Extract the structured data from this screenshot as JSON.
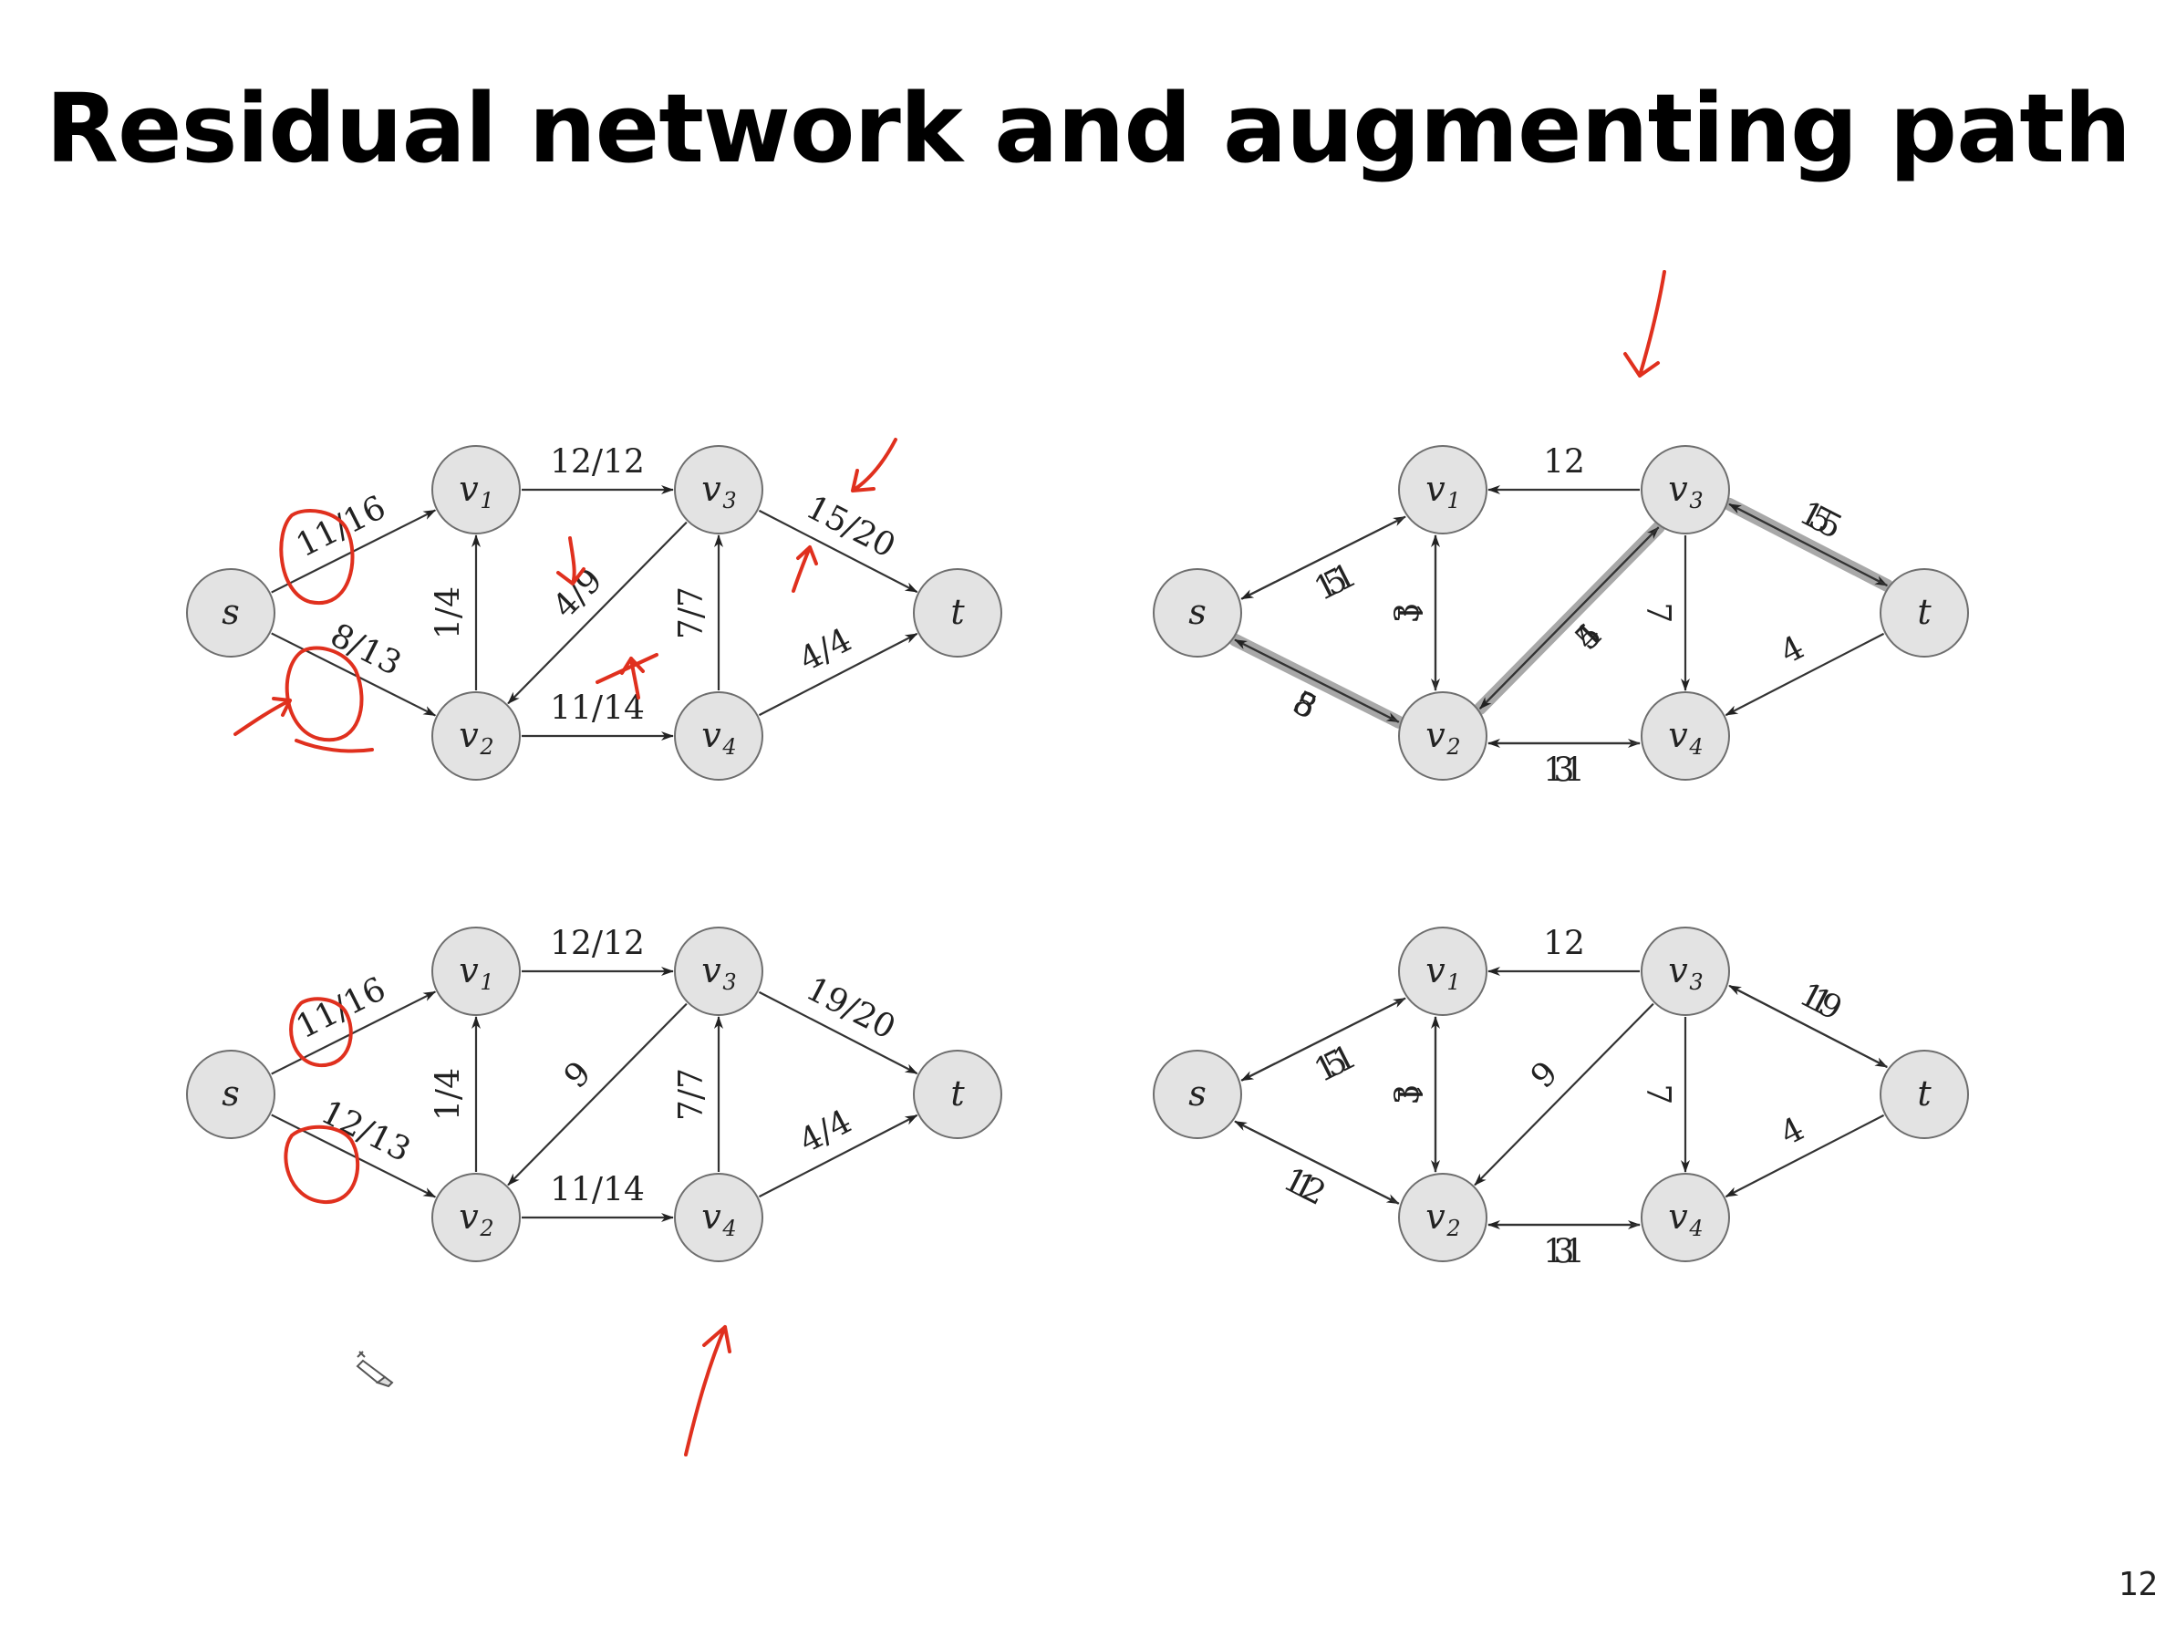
{
  "slide": {
    "title": "Residual network and augmenting path",
    "page_number": "12"
  },
  "icons": {
    "cursor": "pen-cursor-icon"
  },
  "colors": {
    "annotation": "#e0301e",
    "node_fill": "#e3e3e3",
    "path_highlight": "#9a9a9a"
  },
  "panels": [
    {
      "id": "flow-top-left",
      "nodes": [
        {
          "id": "s",
          "label": "s",
          "sub": ""
        },
        {
          "id": "v1",
          "label": "v",
          "sub": "1"
        },
        {
          "id": "v2",
          "label": "v",
          "sub": "2"
        },
        {
          "id": "v3",
          "label": "v",
          "sub": "3"
        },
        {
          "id": "v4",
          "label": "v",
          "sub": "4"
        },
        {
          "id": "t",
          "label": "t",
          "sub": ""
        }
      ],
      "edges": [
        {
          "from": "s",
          "to": "v1",
          "label": "11/16"
        },
        {
          "from": "s",
          "to": "v2",
          "label": "8/13"
        },
        {
          "from": "v2",
          "to": "v1",
          "label": "1/4"
        },
        {
          "from": "v1",
          "to": "v3",
          "label": "12/12"
        },
        {
          "from": "v3",
          "to": "v2",
          "label": "4/9"
        },
        {
          "from": "v2",
          "to": "v4",
          "label": "11/14"
        },
        {
          "from": "v4",
          "to": "v3",
          "label": "7/7"
        },
        {
          "from": "v3",
          "to": "t",
          "label": "15/20"
        },
        {
          "from": "v4",
          "to": "t",
          "label": "4/4"
        }
      ]
    },
    {
      "id": "residual-top-right",
      "nodes": [
        {
          "id": "s",
          "label": "s",
          "sub": ""
        },
        {
          "id": "v1",
          "label": "v",
          "sub": "1"
        },
        {
          "id": "v2",
          "label": "v",
          "sub": "2"
        },
        {
          "id": "v3",
          "label": "v",
          "sub": "3"
        },
        {
          "id": "v4",
          "label": "v",
          "sub": "4"
        },
        {
          "id": "t",
          "label": "t",
          "sub": ""
        }
      ],
      "edges": [
        {
          "from": "s",
          "to": "v1",
          "label": "5"
        },
        {
          "from": "v1",
          "to": "s",
          "label": "11"
        },
        {
          "from": "s",
          "to": "v2",
          "label": "5",
          "highlight": true
        },
        {
          "from": "v2",
          "to": "s",
          "label": "8"
        },
        {
          "from": "v1",
          "to": "v2",
          "label": "1"
        },
        {
          "from": "v2",
          "to": "v1",
          "label": "3"
        },
        {
          "from": "v3",
          "to": "v1",
          "label": "12"
        },
        {
          "from": "v2",
          "to": "v3",
          "label": "4",
          "highlight": true
        },
        {
          "from": "v3",
          "to": "v2",
          "label": "5"
        },
        {
          "from": "v2",
          "to": "v4",
          "label": "3"
        },
        {
          "from": "v4",
          "to": "v2",
          "label": "11"
        },
        {
          "from": "v3",
          "to": "v4",
          "label": "7"
        },
        {
          "from": "v3",
          "to": "t",
          "label": "5",
          "highlight": true
        },
        {
          "from": "t",
          "to": "v3",
          "label": "15"
        },
        {
          "from": "t",
          "to": "v4",
          "label": "4"
        }
      ]
    },
    {
      "id": "flow-bottom-left",
      "nodes": [
        {
          "id": "s",
          "label": "s",
          "sub": ""
        },
        {
          "id": "v1",
          "label": "v",
          "sub": "1"
        },
        {
          "id": "v2",
          "label": "v",
          "sub": "2"
        },
        {
          "id": "v3",
          "label": "v",
          "sub": "3"
        },
        {
          "id": "v4",
          "label": "v",
          "sub": "4"
        },
        {
          "id": "t",
          "label": "t",
          "sub": ""
        }
      ],
      "edges": [
        {
          "from": "s",
          "to": "v1",
          "label": "11/16"
        },
        {
          "from": "s",
          "to": "v2",
          "label": "12/13"
        },
        {
          "from": "v2",
          "to": "v1",
          "label": "1/4"
        },
        {
          "from": "v1",
          "to": "v3",
          "label": "12/12"
        },
        {
          "from": "v3",
          "to": "v2",
          "label": "9"
        },
        {
          "from": "v2",
          "to": "v4",
          "label": "11/14"
        },
        {
          "from": "v4",
          "to": "v3",
          "label": "7/7"
        },
        {
          "from": "v3",
          "to": "t",
          "label": "19/20"
        },
        {
          "from": "v4",
          "to": "t",
          "label": "4/4"
        }
      ]
    },
    {
      "id": "residual-bottom-right",
      "nodes": [
        {
          "id": "s",
          "label": "s",
          "sub": ""
        },
        {
          "id": "v1",
          "label": "v",
          "sub": "1"
        },
        {
          "id": "v2",
          "label": "v",
          "sub": "2"
        },
        {
          "id": "v3",
          "label": "v",
          "sub": "3"
        },
        {
          "id": "v4",
          "label": "v",
          "sub": "4"
        },
        {
          "id": "t",
          "label": "t",
          "sub": ""
        }
      ],
      "edges": [
        {
          "from": "s",
          "to": "v1",
          "label": "5"
        },
        {
          "from": "v1",
          "to": "s",
          "label": "11"
        },
        {
          "from": "s",
          "to": "v2",
          "label": "1"
        },
        {
          "from": "v2",
          "to": "s",
          "label": "12"
        },
        {
          "from": "v1",
          "to": "v2",
          "label": "1"
        },
        {
          "from": "v2",
          "to": "v1",
          "label": "3"
        },
        {
          "from": "v3",
          "to": "v1",
          "label": "12"
        },
        {
          "from": "v3",
          "to": "v2",
          "label": "9"
        },
        {
          "from": "v2",
          "to": "v4",
          "label": "3"
        },
        {
          "from": "v4",
          "to": "v2",
          "label": "11"
        },
        {
          "from": "v3",
          "to": "v4",
          "label": "7"
        },
        {
          "from": "v3",
          "to": "t",
          "label": "1"
        },
        {
          "from": "t",
          "to": "v3",
          "label": "19"
        },
        {
          "from": "t",
          "to": "v4",
          "label": "4"
        }
      ]
    }
  ]
}
